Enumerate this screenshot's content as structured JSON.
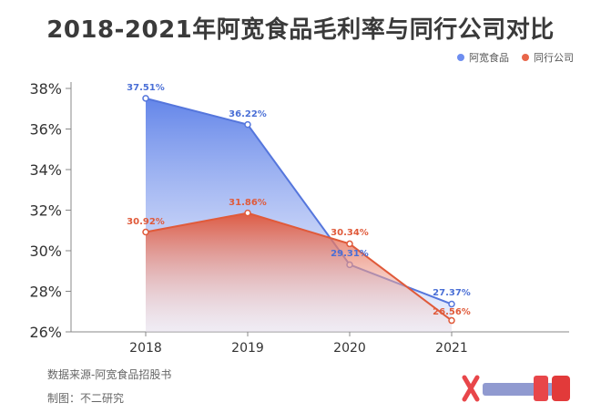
{
  "title": "2018-2021年阿宽食品毛利率与同行公司对比",
  "legend": [
    {
      "name": "阿宽食品",
      "color": "#5B7FE0"
    },
    {
      "name": "同行公司",
      "color": "#E05A3A"
    }
  ],
  "footer": {
    "source": "数据来源-阿宽食品招股书",
    "maker": "制图：不二研究"
  },
  "chart_data": {
    "type": "area",
    "title": "2018-2021年阿宽食品毛利率与同行公司对比",
    "xlabel": "",
    "ylabel": "",
    "categories": [
      "2018",
      "2019",
      "2020",
      "2021"
    ],
    "yticks": [
      "26%",
      "28%",
      "30%",
      "32%",
      "34%",
      "36%",
      "38%"
    ],
    "ylim": [
      26,
      38
    ],
    "grid": false,
    "legend_position": "top-right",
    "series": [
      {
        "name": "阿宽食品",
        "color": "#5B7FE0",
        "values": [
          37.51,
          36.22,
          29.31,
          27.37
        ],
        "labels": [
          "37.51%",
          "36.22%",
          "29.31%",
          "27.37%"
        ]
      },
      {
        "name": "同行公司",
        "color": "#E05A3A",
        "values": [
          30.92,
          31.86,
          30.34,
          26.56
        ],
        "labels": [
          "30.92%",
          "31.86%",
          "30.34%",
          "26.56%"
        ]
      }
    ]
  }
}
